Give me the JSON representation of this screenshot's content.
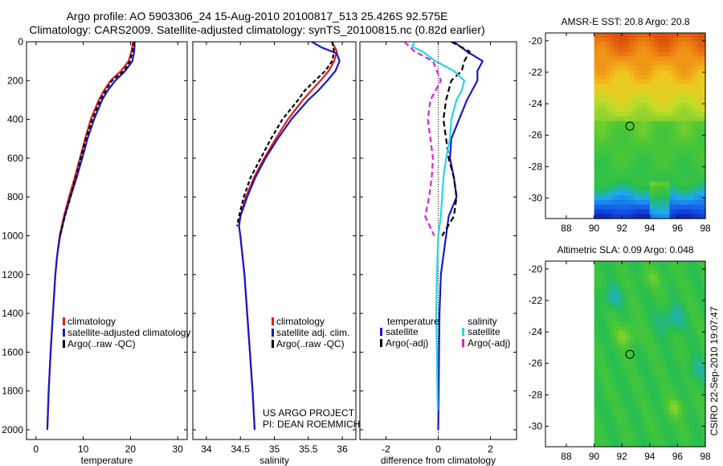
{
  "header": {
    "title_line1": "Argo profile: AO 5903306_24 15-Aug-2010 20100817_513 25.426S 92.575E",
    "title_line2": "Climatology: CARS2009. Satellite-adjusted climatology: synTS_20100815.nc (0.82d earlier)"
  },
  "stamp": "CSIRO 22-Sep-2010 19:07:47",
  "colors": {
    "climatology": "#e41a1c",
    "satellite": "#1818d0",
    "argo": "#000000",
    "salinity_satellite": "#22d8e0",
    "salinity_argo": "#e020e0"
  },
  "chart_data": [
    {
      "type": "line",
      "id": "temperature",
      "xlabel": "temperature",
      "ylabel": "",
      "xlim": [
        -2,
        32
      ],
      "ylim": [
        2050,
        0
      ],
      "xticks": [
        0,
        10,
        20,
        30
      ],
      "yticks": [
        0,
        200,
        400,
        600,
        800,
        1000,
        1200,
        1400,
        1600,
        1800,
        2000
      ],
      "legend": [
        "climatology",
        "satellite-adjusted climatology",
        "Argo(..raw -QC)"
      ],
      "series": [
        {
          "name": "climatology",
          "color": "#e41a1c",
          "dash": "",
          "depth": [
            0,
            50,
            100,
            150,
            200,
            250,
            300,
            400,
            500,
            600,
            700,
            800,
            900,
            1000,
            1100,
            1200,
            1400,
            1600,
            1800,
            2000
          ],
          "values": [
            20.5,
            20.2,
            19.6,
            18.0,
            15.8,
            14.4,
            13.3,
            11.6,
            10.4,
            9.3,
            8.2,
            7.0,
            5.9,
            5.0,
            4.5,
            4.1,
            3.6,
            3.1,
            2.7,
            2.4
          ]
        },
        {
          "name": "satellite-adjusted climatology",
          "color": "#1818d0",
          "dash": "",
          "depth": [
            0,
            50,
            100,
            150,
            200,
            250,
            300,
            400,
            500,
            600,
            700,
            800,
            900,
            1000,
            1100,
            1200,
            1400,
            1600,
            1800,
            2000
          ],
          "values": [
            20.9,
            20.8,
            20.4,
            18.9,
            16.8,
            15.2,
            14.0,
            12.3,
            10.9,
            9.8,
            8.6,
            7.3,
            6.1,
            5.1,
            4.5,
            4.1,
            3.6,
            3.1,
            2.7,
            2.4
          ]
        },
        {
          "name": "Argo(..raw -QC)",
          "color": "#000000",
          "dash": "5,3",
          "depth": [
            0,
            50,
            100,
            150,
            200,
            250,
            300,
            400,
            500,
            600,
            700,
            800,
            900,
            1000
          ],
          "values": [
            20.8,
            20.4,
            19.9,
            18.6,
            16.1,
            14.8,
            13.6,
            11.9,
            10.6,
            9.5,
            8.4,
            7.3,
            6.1,
            5.1
          ]
        }
      ]
    },
    {
      "type": "line",
      "id": "salinity",
      "xlabel": "salinity",
      "ylabel": "",
      "xlim": [
        33.8,
        36.2
      ],
      "ylim": [
        2050,
        0
      ],
      "xticks": [
        34,
        34.5,
        35,
        35.5,
        36
      ],
      "yticks": [
        0,
        200,
        400,
        600,
        800,
        1000,
        1200,
        1400,
        1600,
        1800,
        2000
      ],
      "legend": [
        "climatology",
        "satellite adj. clim.",
        "Argo(..raw -QC)"
      ],
      "annotation": [
        "US ARGO PROJECT",
        "PI: DEAN ROEMMICH"
      ],
      "series": [
        {
          "name": "climatology",
          "color": "#e41a1c",
          "dash": "",
          "depth": [
            0,
            50,
            100,
            150,
            200,
            250,
            300,
            400,
            500,
            600,
            700,
            800,
            900,
            950,
            1000,
            1200,
            1400,
            1600,
            1800,
            2000
          ],
          "values": [
            35.85,
            35.92,
            35.88,
            35.8,
            35.68,
            35.55,
            35.42,
            35.2,
            35.02,
            34.85,
            34.7,
            34.58,
            34.5,
            34.48,
            34.5,
            34.56,
            34.6,
            34.64,
            34.68,
            34.71
          ]
        },
        {
          "name": "satellite adj. clim.",
          "color": "#1818d0",
          "dash": "",
          "depth": [
            0,
            30,
            60,
            100,
            150,
            200,
            250,
            300,
            400,
            500,
            600,
            700,
            800,
            900,
            950,
            1000,
            1200,
            1400,
            1600,
            1800,
            2000
          ],
          "values": [
            35.55,
            35.7,
            35.92,
            35.96,
            35.9,
            35.78,
            35.65,
            35.5,
            35.25,
            35.05,
            34.87,
            34.72,
            34.6,
            34.5,
            34.48,
            34.5,
            34.56,
            34.6,
            34.64,
            34.68,
            34.71
          ]
        },
        {
          "name": "Argo(..raw -QC)",
          "color": "#000000",
          "dash": "5,3",
          "depth": [
            0,
            50,
            100,
            150,
            200,
            250,
            300,
            400,
            500,
            600,
            700,
            800,
            900,
            950
          ],
          "values": [
            35.85,
            35.88,
            35.85,
            35.75,
            35.6,
            35.45,
            35.35,
            35.12,
            34.95,
            34.8,
            34.65,
            34.55,
            34.48,
            34.45
          ]
        }
      ]
    },
    {
      "type": "line",
      "id": "difference",
      "xlabel": "difference from climatology",
      "ylabel": "",
      "xlim": [
        -3,
        3
      ],
      "ylim": [
        2050,
        0
      ],
      "xticks": [
        -2,
        0,
        2
      ],
      "yticks": [
        0,
        200,
        400,
        600,
        800,
        1000,
        1200,
        1400,
        1600,
        1800,
        2000
      ],
      "legend_titles": [
        "temperature",
        "salinity"
      ],
      "legend": [
        "satellite",
        "Argo(-adj)",
        "satellite",
        "Argo(-adj)"
      ],
      "series": [
        {
          "name": "temperature satellite",
          "color": "#1818d0",
          "dash": "",
          "depth": [
            0,
            50,
            100,
            150,
            200,
            300,
            400,
            500,
            600,
            700,
            800,
            900,
            1000,
            1100,
            1200,
            1400,
            1600,
            1800,
            2000
          ],
          "values": [
            0.6,
            1.1,
            1.7,
            1.5,
            1.5,
            1.1,
            0.8,
            0.5,
            0.45,
            0.6,
            0.7,
            0.4,
            0.3,
            0.2,
            0.1,
            0.05,
            0.03,
            0.02,
            0.0
          ]
        },
        {
          "name": "temperature Argo(-adj)",
          "color": "#000000",
          "dash": "7,4",
          "depth": [
            0,
            50,
            100,
            150,
            200,
            300,
            400,
            500,
            600,
            700,
            800,
            900,
            1000
          ],
          "values": [
            0.5,
            1.2,
            1.0,
            0.9,
            0.5,
            0.3,
            0.2,
            0.3,
            0.4,
            0.6,
            0.7,
            0.6,
            0.15
          ]
        },
        {
          "name": "salinity satellite",
          "color": "#22d8e0",
          "dash": "",
          "depth": [
            0,
            25,
            50,
            100,
            150,
            200,
            250,
            300,
            400,
            500,
            600,
            700,
            800,
            900,
            1000,
            1200,
            1400,
            1600,
            1800,
            1900
          ],
          "values": [
            -0.9,
            -1.0,
            -0.6,
            -0.1,
            0.6,
            1.0,
            0.9,
            0.7,
            0.5,
            0.45,
            0.3,
            0.2,
            0.15,
            0.1,
            0.0,
            -0.05,
            -0.08,
            -0.05,
            -0.03,
            -0.02
          ]
        },
        {
          "name": "salinity Argo(-adj)",
          "color": "#e020e0",
          "dash": "7,4",
          "depth": [
            0,
            50,
            100,
            200,
            300,
            400,
            500,
            600,
            700,
            800,
            900,
            1000
          ],
          "values": [
            -1.3,
            -0.9,
            -0.2,
            0.1,
            -0.3,
            -0.4,
            -0.3,
            -0.2,
            -0.25,
            -0.35,
            -0.5,
            -0.15
          ]
        }
      ]
    },
    {
      "type": "heatmap",
      "id": "sst",
      "title": "AMSR-E SST: 20.8  Argo: 20.8",
      "xlim": [
        86.5,
        98
      ],
      "ylim": [
        -31.3,
        -19.5
      ],
      "data_xlim": [
        90,
        98
      ],
      "xticks": [
        88,
        90,
        92,
        94,
        96,
        98
      ],
      "yticks": [
        -20,
        -22,
        -24,
        -26,
        -28,
        -30
      ],
      "marker": {
        "lon": 92.575,
        "lat": -25.426
      }
    },
    {
      "type": "heatmap",
      "id": "sla",
      "title": "Altimetric SLA: 0.09  Argo: 0.048",
      "xlim": [
        86.5,
        98
      ],
      "ylim": [
        -31.3,
        -19.5
      ],
      "data_xlim": [
        90,
        98
      ],
      "xticks": [
        88,
        90,
        92,
        94,
        96,
        98
      ],
      "yticks": [
        -20,
        -22,
        -24,
        -26,
        -28,
        -30
      ],
      "marker": {
        "lon": 92.575,
        "lat": -25.426
      }
    }
  ]
}
